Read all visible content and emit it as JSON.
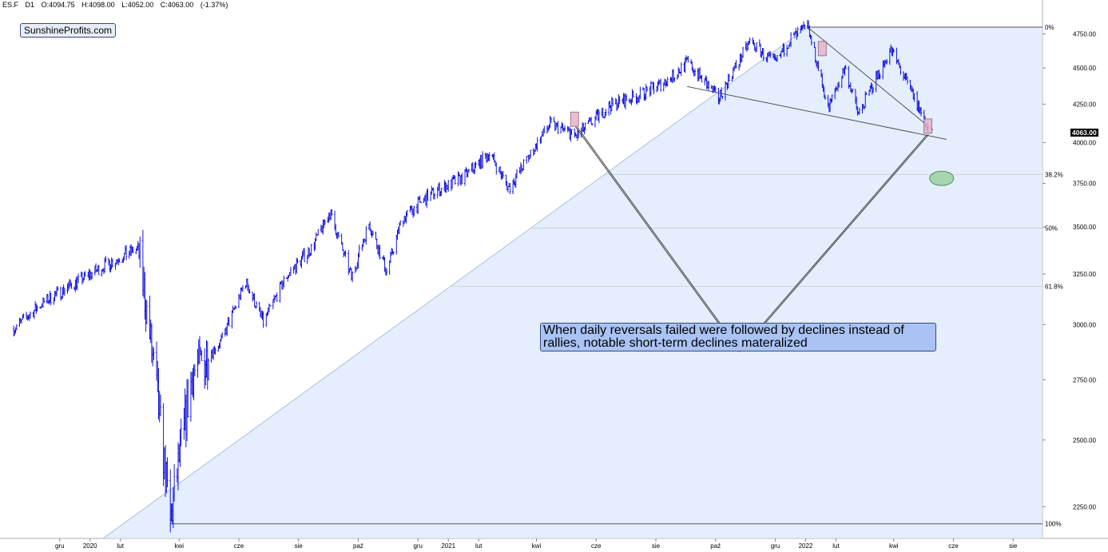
{
  "header": {
    "symbol": "ES.F",
    "timeframe": "D1",
    "open": "O:4094.75",
    "high": "H:4098.00",
    "low": "L:4052.00",
    "close": "C:4063.00",
    "change": "(-1.37%)"
  },
  "watermark": "SunshineProfits.com",
  "annotation": "When daily reversals failed were followed by declines instead of rallies, notable short-term declines materalized",
  "last_price_label": "4063.00",
  "chart_data": {
    "type": "line",
    "candle_style": "ohlc-bars",
    "series": [
      {
        "values_meaning": "approx daily closes (monthly waypoints)",
        "x": [
          "2019-10-15",
          "2019-11-15",
          "2019-12-15",
          "2020-01-15",
          "2020-02-19",
          "2020-03-23",
          "2020-04-15",
          "2020-05-15",
          "2020-06-08",
          "2020-06-26",
          "2020-07-20",
          "2020-08-15",
          "2020-09-02",
          "2020-09-24",
          "2020-10-12",
          "2020-10-30",
          "2020-11-15",
          "2020-12-15",
          "2021-01-15",
          "2021-02-12",
          "2021-03-04",
          "2021-04-15",
          "2021-05-12",
          "2021-06-15",
          "2021-07-15",
          "2021-08-15",
          "2021-09-02",
          "2021-10-04",
          "2021-11-05",
          "2021-12-01",
          "2021-12-15",
          "2022-01-03",
          "2022-01-24",
          "2022-02-10",
          "2022-02-24",
          "2022-03-29",
          "2022-04-15",
          "2022-05-02",
          "2022-05-06"
        ],
        "values": [
          2980,
          3110,
          3200,
          3290,
          3385,
          2190,
          2780,
          2930,
          3210,
          3010,
          3240,
          3390,
          3580,
          3230,
          3520,
          3260,
          3550,
          3690,
          3780,
          3930,
          3720,
          4120,
          4040,
          4240,
          4310,
          4420,
          4540,
          4290,
          4690,
          4530,
          4700,
          4800,
          4220,
          4500,
          4180,
          4630,
          4390,
          4150,
          4063
        ]
      }
    ],
    "y_axis": {
      "scale": "log",
      "range": [
        2140,
        4960
      ],
      "ticks": [
        "2250.00",
        "2500.00",
        "2750.00",
        "3000.00",
        "3250.00",
        "3500.00",
        "3750.00",
        "4000.00",
        "4250.00",
        "4500.00",
        "4750.00"
      ],
      "tick_values": [
        2250,
        2500,
        2750,
        3000,
        3250,
        3500,
        3750,
        4000,
        4250,
        4500,
        4750
      ]
    },
    "x_axis": {
      "range": [
        "2019-10-01",
        "2022-08-31"
      ],
      "ticks": [
        {
          "label": "gru",
          "date": "2019-12-01"
        },
        {
          "label": "2020",
          "date": "2020-01-01"
        },
        {
          "label": "lut",
          "date": "2020-02-01"
        },
        {
          "label": "kwi",
          "date": "2020-04-01"
        },
        {
          "label": "cze",
          "date": "2020-06-01"
        },
        {
          "label": "sie",
          "date": "2020-08-01"
        },
        {
          "label": "paź",
          "date": "2020-10-01"
        },
        {
          "label": "gru",
          "date": "2020-12-01"
        },
        {
          "label": "2021",
          "date": "2021-01-01"
        },
        {
          "label": "lut",
          "date": "2021-02-01"
        },
        {
          "label": "kwi",
          "date": "2021-04-01"
        },
        {
          "label": "cze",
          "date": "2021-06-01"
        },
        {
          "label": "sie",
          "date": "2021-08-01"
        },
        {
          "label": "paź",
          "date": "2021-10-01"
        },
        {
          "label": "gru",
          "date": "2021-12-01"
        },
        {
          "label": "2022",
          "date": "2022-01-01"
        },
        {
          "label": "lut",
          "date": "2022-02-01"
        },
        {
          "label": "kwi",
          "date": "2022-04-01"
        },
        {
          "label": "cze",
          "date": "2022-06-01"
        },
        {
          "label": "sie",
          "date": "2022-08-01"
        }
      ]
    },
    "fibonacci": {
      "from": {
        "date": "2020-03-23",
        "value": 2190
      },
      "to": {
        "date": "2022-01-03",
        "value": 4800
      },
      "levels": [
        {
          "label": "0%",
          "ratio": 0
        },
        {
          "label": "38.2%",
          "ratio": 0.382
        },
        {
          "label": "50%",
          "ratio": 0.5
        },
        {
          "label": "61.8%",
          "ratio": 0.618
        },
        {
          "label": "100%",
          "ratio": 1
        }
      ]
    },
    "trendlines": [
      {
        "name": "support",
        "from": {
          "date": "2021-09-02",
          "value": 4370
        },
        "to": {
          "date": "2022-05-25",
          "value": 4020
        }
      },
      {
        "name": "resistance",
        "from": {
          "date": "2022-01-03",
          "value": 4800
        },
        "to": {
          "date": "2022-05-11",
          "value": 4080
        }
      },
      {
        "name": "rising-wedge-edge",
        "from": {
          "date": "2019-12-20",
          "value": 2080
        },
        "to": {
          "date": "2022-01-03",
          "value": 4800
        }
      }
    ],
    "pointer_lines": [
      {
        "from": {
          "date": "2021-05-11",
          "value": 4100
        },
        "to": {
          "date": "2021-10-25",
          "value": 2875
        }
      },
      {
        "from": {
          "date": "2021-10-25",
          "value": 2875
        },
        "to": {
          "date": "2022-05-05",
          "value": 4050
        }
      }
    ],
    "highlights": [
      {
        "date": "2021-05-10",
        "value": 4150,
        "color": "#e7b2c9"
      },
      {
        "date": "2022-01-18",
        "value": 4640,
        "color": "#e7b2c9"
      },
      {
        "date": "2022-05-06",
        "value": 4105,
        "color": "#e7b2c9"
      }
    ],
    "target_ellipse": {
      "date": "2022-05-20",
      "value": 3780,
      "color": "#a6d6ae"
    },
    "colors": {
      "bars": "#0000dd",
      "fib_fill": "#dbe8fb",
      "annotation_bg": "#a9c3f4",
      "grid": "#c8c8c8"
    }
  }
}
